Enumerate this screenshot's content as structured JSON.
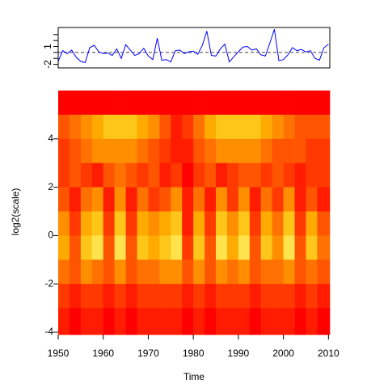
{
  "chart_data": [
    {
      "type": "line",
      "color": "#0000ff",
      "x": [
        1950,
        1951,
        1952,
        1953,
        1954,
        1955,
        1956,
        1957,
        1958,
        1959,
        1960,
        1961,
        1962,
        1963,
        1964,
        1965,
        1966,
        1967,
        1968,
        1969,
        1970,
        1971,
        1972,
        1973,
        1974,
        1975,
        1976,
        1977,
        1978,
        1979,
        1980,
        1981,
        1982,
        1983,
        1984,
        1985,
        1986,
        1987,
        1988,
        1989,
        1990,
        1991,
        1992,
        1993,
        1994,
        1995,
        1996,
        1997,
        1998,
        1999,
        2000,
        2001,
        2002,
        2003,
        2004,
        2005,
        2006,
        2007,
        2008,
        2009,
        2010
      ],
      "values": [
        -1.5,
        0.3,
        -0.2,
        0.4,
        -0.8,
        -1.5,
        -1.7,
        0.8,
        1.2,
        0.1,
        -0.2,
        -0.1,
        -0.5,
        0.6,
        -1.0,
        1.3,
        0.4,
        -0.5,
        -0.2,
        0.7,
        -0.6,
        -1.2,
        2.4,
        -1.3,
        -1.2,
        -1.6,
        0.3,
        0.4,
        -0.2,
        0.1,
        0.2,
        -0.3,
        1.2,
        3.6,
        -0.5,
        -0.6,
        0.6,
        1.4,
        -1.6,
        -0.7,
        0.1,
        0.9,
        1.0,
        0.4,
        0.6,
        -0.4,
        -0.6,
        1.6,
        3.9,
        -1.4,
        -1.2,
        -0.4,
        0.8,
        0.3,
        0.5,
        0.1,
        0.3,
        -1.0,
        -1.3,
        0.8,
        1.4
      ],
      "xlim": [
        1950,
        2010.3
      ],
      "ylim": [
        -2.6,
        4.2
      ],
      "yticks": [
        -2,
        1
      ],
      "yminor_ticks": [
        -1,
        0,
        2,
        3
      ],
      "hline": 0,
      "hline_style": "dashed"
    },
    {
      "type": "heatmap",
      "xlabel": "Time",
      "ylabel": "log2(scale)",
      "xlim": [
        1950,
        2010.3
      ],
      "ylim": [
        -4.1,
        6
      ],
      "xticks": [
        1950,
        1960,
        1970,
        1980,
        1990,
        2000,
        2010
      ],
      "yticks": [
        -4,
        -2,
        0,
        2,
        4
      ],
      "x_edges": [
        1950,
        1952.5,
        1955,
        1957.5,
        1960,
        1962.5,
        1965,
        1967.5,
        1970,
        1972.5,
        1975,
        1977.5,
        1980,
        1982.5,
        1985,
        1987.5,
        1990,
        1992.5,
        1995,
        1997.5,
        2000,
        2002.5,
        2005,
        2007.5,
        2010.3
      ],
      "y_edges": [
        6,
        5,
        4,
        3,
        2,
        1,
        0,
        -1,
        -2,
        -3,
        -4.1
      ],
      "palette": [
        "#ff0000",
        "#ff1c00",
        "#ff3900",
        "#ff5500",
        "#ff7100",
        "#ff8e00",
        "#ffaa00",
        "#ffc61a",
        "#ffe34d",
        "#ffff80"
      ],
      "z": [
        [
          0,
          0,
          0,
          0,
          0,
          0,
          0,
          0,
          0,
          0,
          0,
          0,
          0,
          0,
          0,
          0,
          0,
          0,
          0,
          0,
          0,
          0,
          0,
          0
        ],
        [
          3,
          4,
          5,
          6,
          7,
          7,
          7,
          6,
          5,
          3,
          1,
          2,
          4,
          6,
          7,
          7,
          7,
          7,
          6,
          5,
          4,
          3,
          3,
          3
        ],
        [
          2,
          3,
          4,
          5,
          5,
          5,
          5,
          4,
          3,
          2,
          1,
          1,
          3,
          4,
          5,
          5,
          5,
          5,
          4,
          3,
          3,
          3,
          2,
          2
        ],
        [
          2,
          3,
          2,
          1,
          3,
          4,
          3,
          2,
          3,
          1,
          2,
          0,
          2,
          3,
          1,
          2,
          3,
          3,
          2,
          3,
          2,
          1,
          2,
          2
        ],
        [
          3,
          1,
          4,
          5,
          1,
          5,
          1,
          4,
          2,
          3,
          5,
          1,
          4,
          1,
          5,
          2,
          5,
          1,
          4,
          2,
          5,
          1,
          3,
          1
        ],
        [
          5,
          2,
          6,
          7,
          2,
          7,
          2,
          6,
          5,
          6,
          7,
          1,
          6,
          2,
          7,
          5,
          7,
          2,
          6,
          4,
          7,
          2,
          6,
          3
        ],
        [
          6,
          3,
          7,
          8,
          3,
          8,
          3,
          7,
          6,
          7,
          8,
          2,
          7,
          3,
          8,
          6,
          8,
          3,
          7,
          5,
          8,
          3,
          7,
          4
        ],
        [
          4,
          3,
          5,
          4,
          3,
          5,
          3,
          4,
          4,
          5,
          5,
          3,
          5,
          3,
          5,
          4,
          5,
          3,
          4,
          4,
          5,
          3,
          4,
          3
        ],
        [
          2,
          1,
          2,
          2,
          1,
          2,
          1,
          2,
          2,
          2,
          2,
          1,
          2,
          1,
          2,
          2,
          2,
          1,
          2,
          2,
          2,
          1,
          2,
          1
        ],
        [
          1,
          0,
          1,
          1,
          0,
          1,
          0,
          1,
          1,
          1,
          1,
          0,
          1,
          0,
          1,
          1,
          1,
          0,
          1,
          1,
          1,
          0,
          1,
          0
        ]
      ]
    }
  ]
}
